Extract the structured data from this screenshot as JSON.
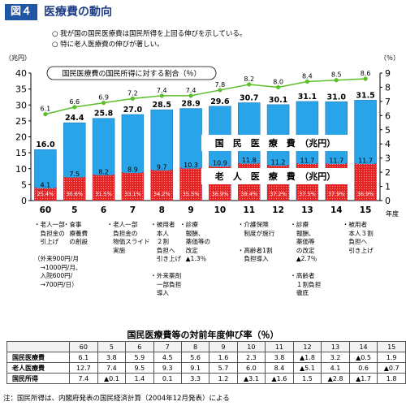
{
  "header": {
    "figure_no": "図４",
    "title": "医療費の動向"
  },
  "notes": [
    "○ 我が国の国民医療費は国民所得を上回る伸びを示している。",
    "○ 特に老人医療費の伸びが著しい。"
  ],
  "chart_data": {
    "type": "bar",
    "categories": [
      "60",
      "5",
      "6",
      "7",
      "8",
      "9",
      "10",
      "11",
      "12",
      "13",
      "14",
      "15"
    ],
    "x_unit": "年度",
    "y_left_unit": "（兆円）",
    "y_left_ticks": [
      "0",
      "5",
      "10",
      "15",
      "20",
      "25",
      "30",
      "35",
      "40"
    ],
    "ylim": [
      0,
      40
    ],
    "y_right_unit": "（％）",
    "y_right_ticks": [
      "0",
      "1",
      "2",
      "3",
      "4",
      "5",
      "6",
      "7",
      "8",
      "9"
    ],
    "y2lim": [
      0,
      9
    ],
    "series": [
      {
        "name": "国民医療費（兆円）",
        "values": [
          16.0,
          24.4,
          25.8,
          27.0,
          28.5,
          28.9,
          29.6,
          30.7,
          30.1,
          31.1,
          31.0,
          31.5
        ],
        "labels": [
          "16.0",
          "24.4",
          "25.8",
          "27.0",
          "28.5",
          "28.9",
          "29.6",
          "30.7",
          "30.1",
          "31.1",
          "31.0",
          "31.5"
        ]
      },
      {
        "name": "老人医療費（兆円）",
        "values": [
          4.1,
          7.5,
          8.2,
          8.9,
          9.7,
          10.3,
          10.9,
          11.8,
          11.2,
          11.7,
          11.7,
          11.7
        ],
        "labels": [
          "4.1",
          "7.5",
          "8.2",
          "8.9",
          "9.7",
          "10.3",
          "10.9",
          "11.8",
          "11.2",
          "11.7",
          "11.7",
          "11.7"
        ],
        "share_labels": [
          "25.4%",
          "30.6%",
          "31.5%",
          "33.1%",
          "34.2%",
          "35.5%",
          "36.9%",
          "38.4%",
          "37.2%",
          "37.5%",
          "37.9%",
          "36.9%"
        ]
      },
      {
        "name": "国民医療費の国民所得に対する割合（％）",
        "values": [
          6.1,
          6.6,
          6.9,
          7.2,
          7.4,
          7.4,
          7.8,
          8.2,
          8.0,
          8.4,
          8.5,
          8.6
        ],
        "labels": [
          "6.1",
          "6.6",
          "6.9",
          "7.2",
          "7.4",
          "7.4",
          "7.8",
          "8.2",
          "8.0",
          "8.4",
          "8.5",
          "8.6"
        ]
      }
    ],
    "legend": {
      "ratio": "国民医療費の国民所得に対する割合（％）",
      "national": "国　民　医　療　費　（兆円）",
      "elderly": "老　人　医　療　費　（兆円）"
    },
    "colors": {
      "national": "#2aa4e8",
      "elderly": "#e52222",
      "line": "#5cbf2a",
      "axis_text": "#000000"
    }
  },
  "annotations": [
    {
      "lines": [
        "・老人一部",
        "　負担金の",
        "　引上げ",
        "",
        "（外来900円/月",
        "　→1000円/月、",
        "　入院600円/",
        "　→700円/日）"
      ]
    },
    {
      "lines": [
        "・食事",
        "　療養費",
        "　の創設"
      ]
    },
    {
      "lines": [
        "・老人一部",
        "　負担金の",
        "　物価スライド",
        "　実施"
      ]
    },
    {
      "lines": [
        "・被用者",
        "　本人",
        "　２割",
        "　負担へ",
        "　引き上げ",
        "",
        "・外来薬剤",
        "　一部負担",
        "　導入"
      ]
    },
    {
      "lines": [
        "・診療",
        "　報酬、",
        "　薬価等の",
        "　改定",
        "　▲1.3％"
      ]
    },
    {
      "lines": [
        "・介護保険",
        "　制度が施行",
        "",
        "・高齢者1割",
        "　負担導入"
      ]
    },
    {
      "lines": [
        "・診療",
        "　報酬、",
        "　薬価等",
        "　の改定",
        "　▲2.7％",
        "",
        "・高齢者",
        "　１割負担",
        "　徹底"
      ]
    },
    {
      "lines": [
        "・被用者",
        "　本人３割",
        "　負担へ",
        "　引き上げ"
      ]
    }
  ],
  "growth_table": {
    "title": "国民医療費等の対前年度伸び率（％）",
    "years": [
      "60",
      "5",
      "6",
      "7",
      "8",
      "9",
      "10",
      "11",
      "12",
      "13",
      "14",
      "15"
    ],
    "rows": [
      {
        "label": "国民医療費",
        "values": [
          "6.1",
          "3.8",
          "5.9",
          "4.5",
          "5.6",
          "1.6",
          "2.3",
          "3.8",
          "▲1.8",
          "3.2",
          "▲0.5",
          "1.9"
        ]
      },
      {
        "label": "老人医療費",
        "values": [
          "12.7",
          "7.4",
          "9.5",
          "9.3",
          "9.1",
          "5.7",
          "6.0",
          "8.4",
          "▲5.1",
          "4.1",
          "0.6",
          "▲0.7"
        ]
      },
      {
        "label": "国民所得",
        "values": [
          "7.4",
          "▲0.1",
          "1.4",
          "0.1",
          "3.3",
          "1.2",
          "▲3.1",
          "▲1.6",
          "1.5",
          "▲2.8",
          "▲1.7",
          "1.8"
        ]
      }
    ]
  },
  "footnote": "注：国民所得は、内閣府発表の国民経済計算（2004年12月発表）による"
}
